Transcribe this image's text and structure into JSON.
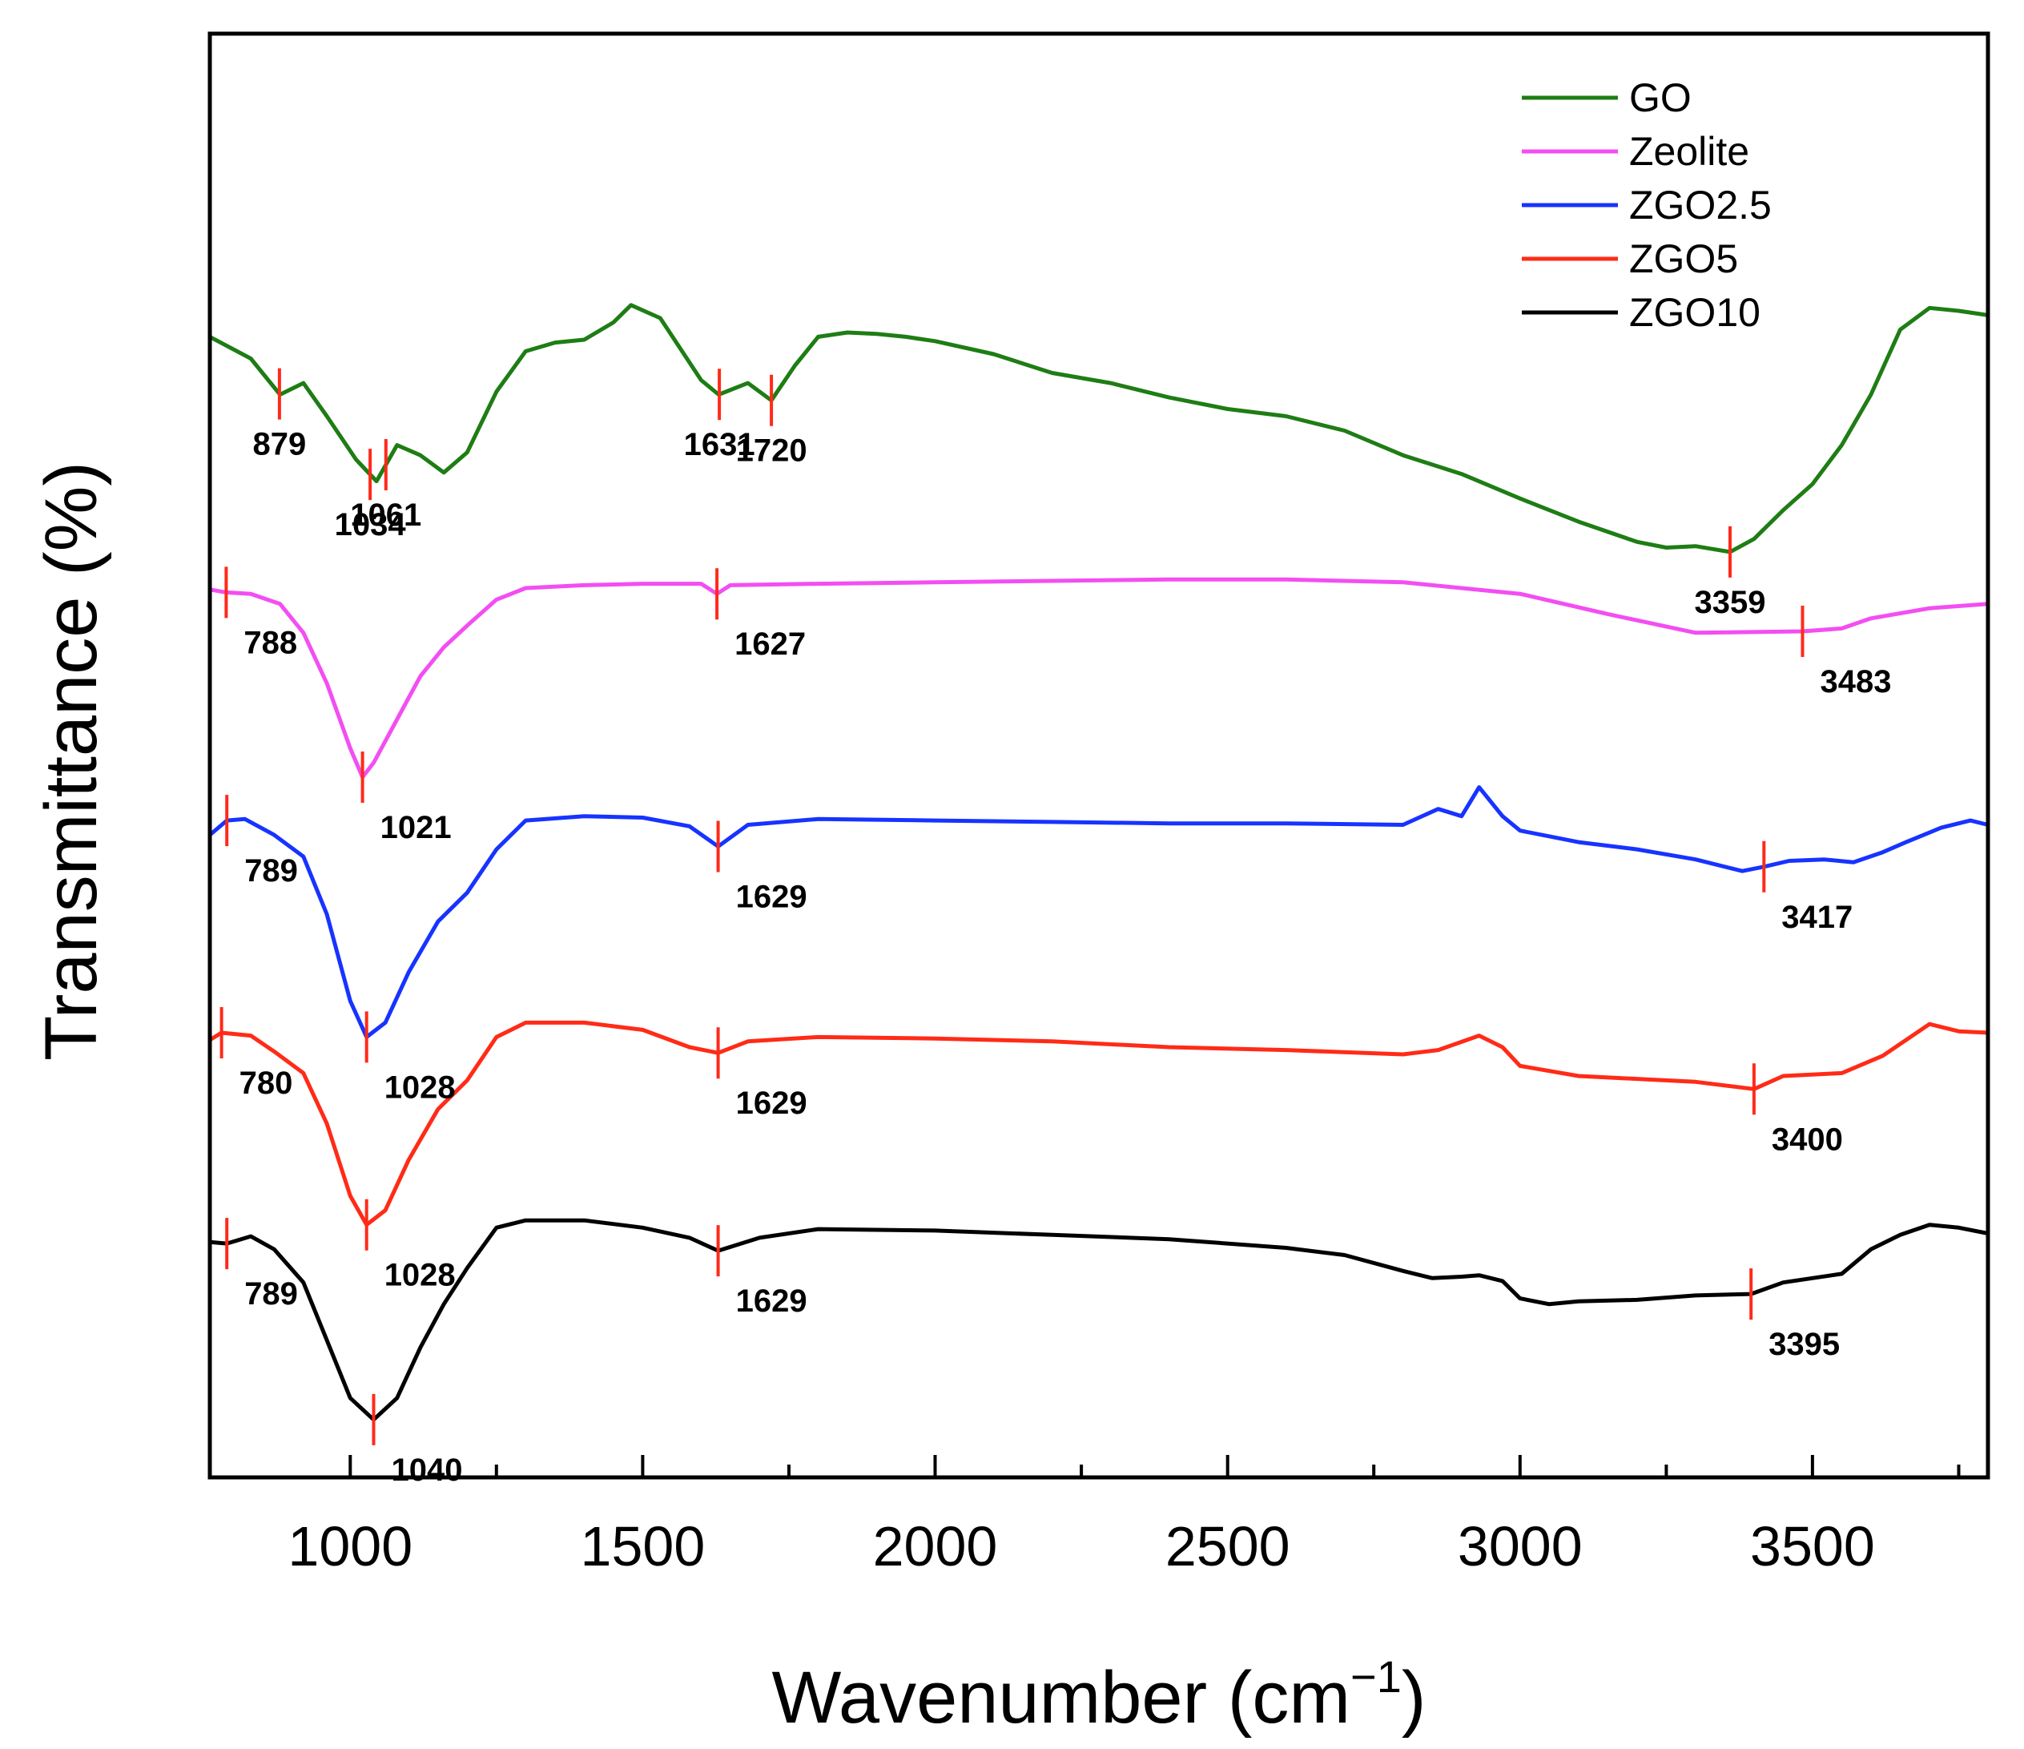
{
  "chart_data": {
    "type": "line",
    "title": "",
    "xlabel": "Wavenumber (cm",
    "xlabel_sup": "−1",
    "xlabel_close": ")",
    "ylabel": "Transmittance (%)",
    "xlim": [
      760,
      3800
    ],
    "ylim": [
      0,
      100
    ],
    "xticks": [
      1000,
      1500,
      2000,
      2500,
      3000,
      3500
    ],
    "xtick_labels": [
      "1000",
      "1500",
      "2000",
      "2500",
      "3000",
      "3500"
    ],
    "y_tick_labels_shown": false,
    "legend_position": "top-right",
    "peak_marker_color": "#ff2a1a",
    "series": [
      {
        "name": "GO",
        "color": "#1e7d14",
        "points": [
          [
            760,
            79
          ],
          [
            830,
            77.5
          ],
          [
            880,
            75
          ],
          [
            920,
            75.8
          ],
          [
            960,
            73.5
          ],
          [
            1010,
            70.5
          ],
          [
            1045,
            69
          ],
          [
            1080,
            71.5
          ],
          [
            1120,
            70.8
          ],
          [
            1160,
            69.6
          ],
          [
            1200,
            71
          ],
          [
            1250,
            75.2
          ],
          [
            1300,
            78
          ],
          [
            1350,
            78.6
          ],
          [
            1400,
            78.8
          ],
          [
            1450,
            80
          ],
          [
            1480,
            81.2
          ],
          [
            1530,
            80.3
          ],
          [
            1600,
            76
          ],
          [
            1630,
            75
          ],
          [
            1680,
            75.8
          ],
          [
            1720,
            74.6
          ],
          [
            1760,
            77
          ],
          [
            1800,
            79
          ],
          [
            1850,
            79.3
          ],
          [
            1900,
            79.2
          ],
          [
            1950,
            79
          ],
          [
            2000,
            78.7
          ],
          [
            2100,
            77.8
          ],
          [
            2200,
            76.5
          ],
          [
            2300,
            75.8
          ],
          [
            2400,
            74.8
          ],
          [
            2500,
            74
          ],
          [
            2600,
            73.5
          ],
          [
            2700,
            72.5
          ],
          [
            2800,
            70.8
          ],
          [
            2900,
            69.5
          ],
          [
            3000,
            67.8
          ],
          [
            3100,
            66.2
          ],
          [
            3200,
            64.8
          ],
          [
            3250,
            64.4
          ],
          [
            3300,
            64.5
          ],
          [
            3359,
            64.1
          ],
          [
            3400,
            65
          ],
          [
            3450,
            67
          ],
          [
            3500,
            68.8
          ],
          [
            3550,
            71.5
          ],
          [
            3600,
            75
          ],
          [
            3650,
            79.5
          ],
          [
            3700,
            81
          ],
          [
            3750,
            80.8
          ],
          [
            3800,
            80.5
          ]
        ],
        "peaks": [
          879,
          1034,
          1061,
          1631,
          1720,
          3359
        ],
        "peak_labels": [
          "879",
          "1034",
          "1061",
          "1631",
          "1720",
          "3359"
        ]
      },
      {
        "name": "Zeolite",
        "color": "#f24ef2",
        "points": [
          [
            760,
            61.5
          ],
          [
            788,
            61.3
          ],
          [
            830,
            61.2
          ],
          [
            880,
            60.5
          ],
          [
            920,
            58.5
          ],
          [
            960,
            55
          ],
          [
            1000,
            50.5
          ],
          [
            1021,
            48.5
          ],
          [
            1040,
            49.5
          ],
          [
            1080,
            52.5
          ],
          [
            1120,
            55.5
          ],
          [
            1160,
            57.5
          ],
          [
            1200,
            59
          ],
          [
            1250,
            60.8
          ],
          [
            1300,
            61.6
          ],
          [
            1400,
            61.8
          ],
          [
            1500,
            61.9
          ],
          [
            1600,
            61.9
          ],
          [
            1627,
            61.2
          ],
          [
            1650,
            61.8
          ],
          [
            1800,
            61.9
          ],
          [
            2000,
            62
          ],
          [
            2200,
            62.1
          ],
          [
            2400,
            62.2
          ],
          [
            2600,
            62.2
          ],
          [
            2800,
            62
          ],
          [
            3000,
            61.2
          ],
          [
            3150,
            59.8
          ],
          [
            3300,
            58.5
          ],
          [
            3483,
            58.6
          ],
          [
            3550,
            58.8
          ],
          [
            3600,
            59.5
          ],
          [
            3700,
            60.2
          ],
          [
            3800,
            60.5
          ]
        ],
        "peaks": [
          788,
          1021,
          1627,
          3483
        ],
        "peak_labels": [
          "788",
          "1021",
          "1627",
          "3483"
        ]
      },
      {
        "name": "ZGO2.5",
        "color": "#1733ff",
        "points": [
          [
            760,
            44.5
          ],
          [
            789,
            45.5
          ],
          [
            820,
            45.6
          ],
          [
            870,
            44.5
          ],
          [
            920,
            43
          ],
          [
            960,
            39
          ],
          [
            1000,
            33
          ],
          [
            1028,
            30.5
          ],
          [
            1060,
            31.5
          ],
          [
            1100,
            35
          ],
          [
            1150,
            38.5
          ],
          [
            1200,
            40.5
          ],
          [
            1250,
            43.5
          ],
          [
            1300,
            45.5
          ],
          [
            1400,
            45.8
          ],
          [
            1500,
            45.7
          ],
          [
            1580,
            45.1
          ],
          [
            1629,
            43.7
          ],
          [
            1680,
            45.2
          ],
          [
            1800,
            45.6
          ],
          [
            2000,
            45.5
          ],
          [
            2200,
            45.4
          ],
          [
            2400,
            45.3
          ],
          [
            2600,
            45.3
          ],
          [
            2800,
            45.2
          ],
          [
            2860,
            46.3
          ],
          [
            2900,
            45.8
          ],
          [
            2930,
            47.8
          ],
          [
            2970,
            45.8
          ],
          [
            3000,
            44.8
          ],
          [
            3100,
            44
          ],
          [
            3200,
            43.5
          ],
          [
            3300,
            42.8
          ],
          [
            3380,
            42
          ],
          [
            3417,
            42.3
          ],
          [
            3460,
            42.7
          ],
          [
            3520,
            42.8
          ],
          [
            3570,
            42.6
          ],
          [
            3620,
            43.3
          ],
          [
            3660,
            44
          ],
          [
            3720,
            45
          ],
          [
            3770,
            45.5
          ],
          [
            3800,
            45.2
          ]
        ],
        "peaks": [
          789,
          1028,
          1629,
          3417
        ],
        "peak_labels": [
          "789",
          "1028",
          "1629",
          "3417"
        ]
      },
      {
        "name": "ZGO5",
        "color": "#ff2b17",
        "points": [
          [
            760,
            30.3
          ],
          [
            780,
            30.8
          ],
          [
            830,
            30.6
          ],
          [
            870,
            29.5
          ],
          [
            920,
            28
          ],
          [
            960,
            24.5
          ],
          [
            1000,
            19.5
          ],
          [
            1028,
            17.5
          ],
          [
            1060,
            18.5
          ],
          [
            1100,
            22
          ],
          [
            1150,
            25.5
          ],
          [
            1200,
            27.5
          ],
          [
            1250,
            30.5
          ],
          [
            1300,
            31.5
          ],
          [
            1400,
            31.5
          ],
          [
            1500,
            31
          ],
          [
            1580,
            29.8
          ],
          [
            1629,
            29.4
          ],
          [
            1680,
            30.2
          ],
          [
            1800,
            30.5
          ],
          [
            2000,
            30.4
          ],
          [
            2200,
            30.2
          ],
          [
            2400,
            29.8
          ],
          [
            2600,
            29.6
          ],
          [
            2800,
            29.3
          ],
          [
            2860,
            29.6
          ],
          [
            2930,
            30.6
          ],
          [
            2970,
            29.8
          ],
          [
            3000,
            28.5
          ],
          [
            3100,
            27.8
          ],
          [
            3200,
            27.6
          ],
          [
            3300,
            27.4
          ],
          [
            3400,
            26.9
          ],
          [
            3450,
            27.8
          ],
          [
            3550,
            28
          ],
          [
            3620,
            29.2
          ],
          [
            3700,
            31.4
          ],
          [
            3750,
            30.9
          ],
          [
            3800,
            30.8
          ]
        ],
        "peaks": [
          780,
          1028,
          1629,
          3400
        ],
        "peak_labels": [
          "780",
          "1028",
          "1629",
          "3400"
        ]
      },
      {
        "name": "ZGO10",
        "color": "#000000",
        "points": [
          [
            760,
            16.3
          ],
          [
            789,
            16.2
          ],
          [
            830,
            16.7
          ],
          [
            870,
            15.8
          ],
          [
            920,
            13.5
          ],
          [
            960,
            9.5
          ],
          [
            1000,
            5.5
          ],
          [
            1040,
            4
          ],
          [
            1080,
            5.5
          ],
          [
            1120,
            9
          ],
          [
            1160,
            12
          ],
          [
            1200,
            14.5
          ],
          [
            1250,
            17.3
          ],
          [
            1300,
            17.8
          ],
          [
            1400,
            17.8
          ],
          [
            1500,
            17.3
          ],
          [
            1580,
            16.6
          ],
          [
            1629,
            15.7
          ],
          [
            1700,
            16.6
          ],
          [
            1800,
            17.2
          ],
          [
            2000,
            17.1
          ],
          [
            2200,
            16.8
          ],
          [
            2400,
            16.5
          ],
          [
            2600,
            15.9
          ],
          [
            2700,
            15.4
          ],
          [
            2800,
            14.3
          ],
          [
            2850,
            13.8
          ],
          [
            2900,
            13.9
          ],
          [
            2930,
            14
          ],
          [
            2970,
            13.6
          ],
          [
            3000,
            12.4
          ],
          [
            3050,
            12
          ],
          [
            3100,
            12.2
          ],
          [
            3200,
            12.3
          ],
          [
            3300,
            12.6
          ],
          [
            3395,
            12.7
          ],
          [
            3450,
            13.5
          ],
          [
            3550,
            14.1
          ],
          [
            3600,
            15.8
          ],
          [
            3650,
            16.8
          ],
          [
            3700,
            17.5
          ],
          [
            3750,
            17.3
          ],
          [
            3800,
            16.9
          ]
        ],
        "peaks": [
          789,
          1040,
          1629,
          3395
        ],
        "peak_labels": [
          "789",
          "1040",
          "1629",
          "3395"
        ]
      }
    ]
  }
}
